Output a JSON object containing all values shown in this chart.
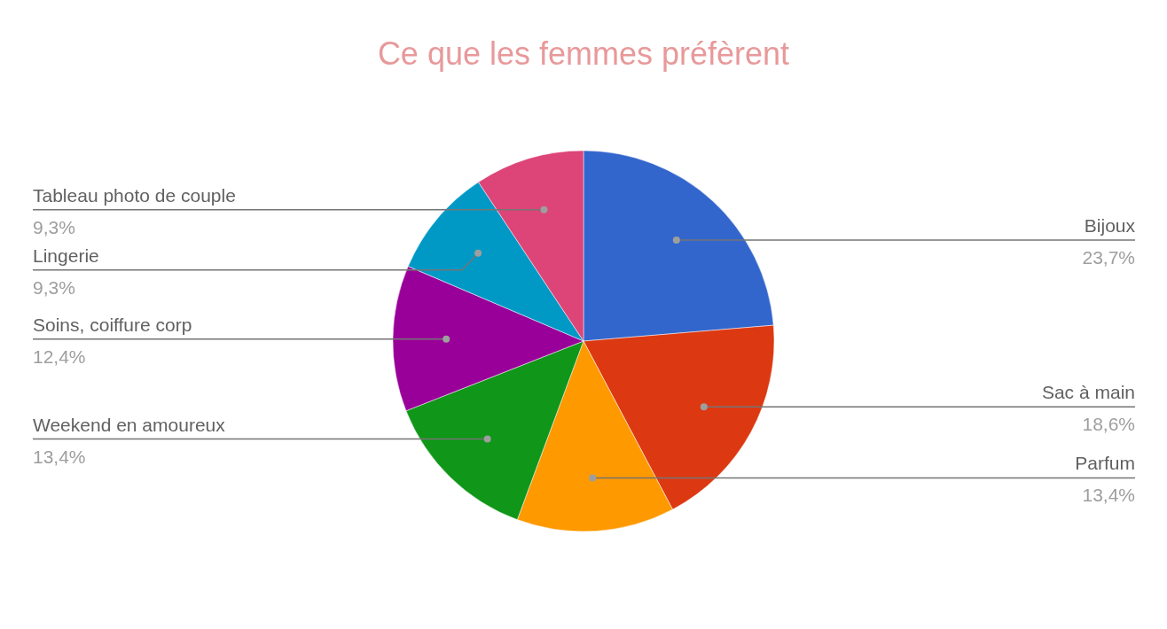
{
  "chart_data": {
    "type": "pie",
    "title": "Ce que les femmes préfèrent",
    "categories": [
      "Bijoux",
      "Sac à main",
      "Parfum",
      "Weekend en amoureux",
      "Soins, coiffure corp",
      "Lingerie",
      "Tableau photo de couple"
    ],
    "values": [
      23.7,
      18.6,
      13.4,
      13.4,
      12.4,
      9.3,
      9.3
    ],
    "value_labels": [
      "23,7%",
      "18,6%",
      "13,4%",
      "13,4%",
      "12,4%",
      "9,3%",
      "9,3%"
    ],
    "colors": [
      "#3366cc",
      "#dc3912",
      "#ff9900",
      "#109618",
      "#990099",
      "#0099c6",
      "#dd4477"
    ]
  }
}
